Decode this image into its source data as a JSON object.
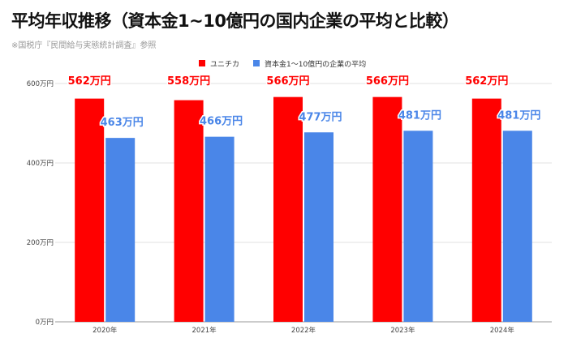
{
  "title": "平均年収推移（資本金1~10億円の国内企業の平均と比較）",
  "subtitle": "※国税庁『民間給与実態統計調査』参照",
  "chart_data": {
    "type": "bar",
    "categories": [
      "2020年",
      "2021年",
      "2022年",
      "2023年",
      "2024年"
    ],
    "series": [
      {
        "name": "ユニチカ",
        "color": "#ff0000",
        "label_color": "#ff0000",
        "values": [
          562,
          558,
          566,
          566,
          562
        ],
        "labels": [
          "562万円",
          "558万円",
          "566万円",
          "566万円",
          "562万円"
        ]
      },
      {
        "name": "資本金1～10億円の企業の平均",
        "color": "#4a86e8",
        "label_color": "#4a86e8",
        "values": [
          463,
          466,
          477,
          481,
          481
        ],
        "labels": [
          "463万円",
          "466万円",
          "477万円",
          "481万円",
          "481万円"
        ]
      }
    ],
    "y_ticks": [
      0,
      200,
      400,
      600
    ],
    "y_tick_labels": [
      "0万円",
      "200万円",
      "400万円",
      "600万円"
    ],
    "ylim": [
      0,
      600
    ],
    "grid": true,
    "legend_position": "top-center"
  }
}
